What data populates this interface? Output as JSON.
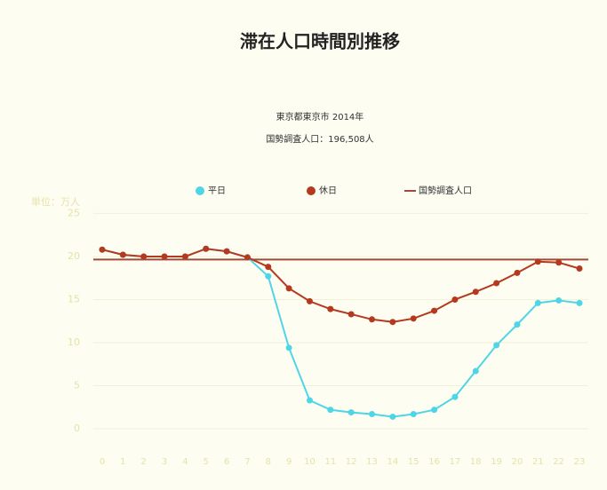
{
  "chart_data": {
    "type": "line",
    "title": "滞在人口時間別推移",
    "subtitle": [
      "東京都東京市 2014年",
      "国勢調査人口：196,508人"
    ],
    "y_label": "単位：万人",
    "categories": [
      "0",
      "1",
      "2",
      "3",
      "4",
      "5",
      "6",
      "7",
      "8",
      "9",
      "10",
      "11",
      "12",
      "13",
      "14",
      "15",
      "16",
      "17",
      "18",
      "19",
      "20",
      "21",
      "22",
      "23"
    ],
    "series": [
      {
        "name": "平日",
        "color": "#4fd6e6",
        "values": [
          20.8,
          20.2,
          20.0,
          20.0,
          20.0,
          20.9,
          20.6,
          19.9,
          17.7,
          9.4,
          3.3,
          2.2,
          1.9,
          1.7,
          1.4,
          1.7,
          2.2,
          3.7,
          6.7,
          9.7,
          12.1,
          14.6,
          14.9,
          14.6
        ]
      },
      {
        "name": "休日",
        "color": "#b5391f",
        "values": [
          20.8,
          20.2,
          20.0,
          20.0,
          20.0,
          20.9,
          20.6,
          19.9,
          18.8,
          16.3,
          14.8,
          13.9,
          13.3,
          12.7,
          12.4,
          12.8,
          13.7,
          15.0,
          15.9,
          16.9,
          18.1,
          19.4,
          19.3,
          18.6
        ]
      }
    ],
    "reference": {
      "name": "国勢調査人口",
      "value": 19.6508,
      "color": "#a04a3a"
    },
    "ylim": [
      -2.78,
      25.56
    ],
    "yticks": [
      0,
      5,
      10,
      15,
      20,
      25
    ],
    "grid": true
  }
}
